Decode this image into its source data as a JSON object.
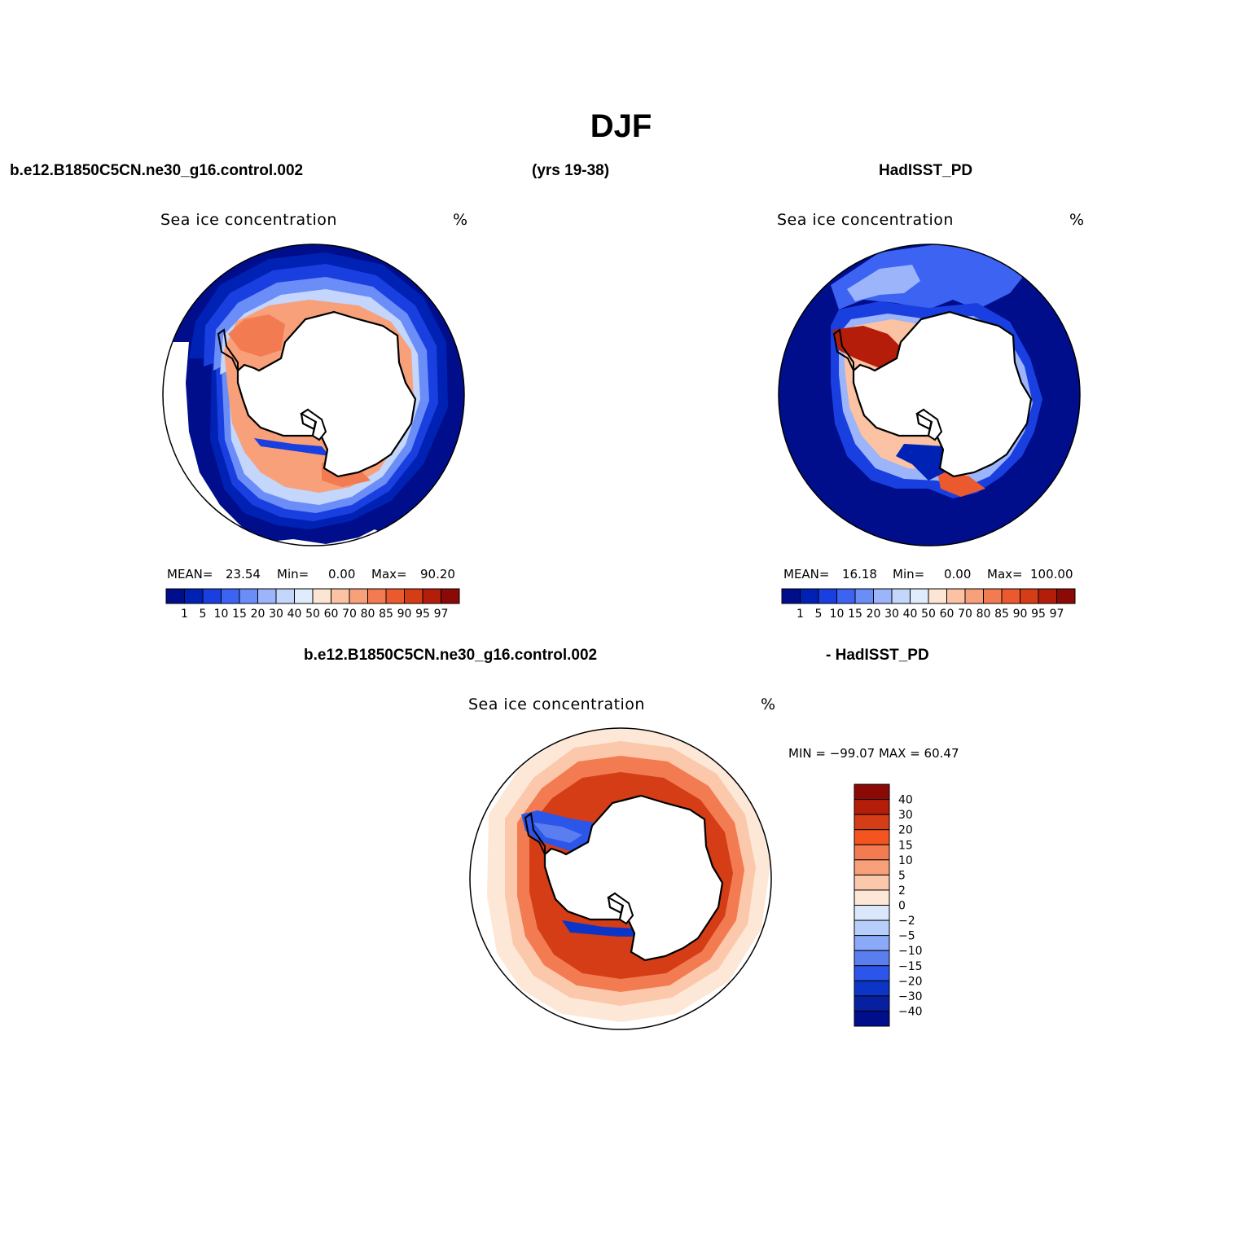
{
  "title": "DJF",
  "header": {
    "case": "b.e12.B1850C5CN.ne30_g16.control.002",
    "years": "(yrs 19-38)",
    "obs": "HadISST_PD",
    "diff_case": "b.e12.B1850C5CN.ne30_g16.control.002",
    "diff_obs": "- HadISST_PD"
  },
  "panels": [
    {
      "id": "model",
      "title": "Sea ice concentration",
      "units": "%",
      "stats": {
        "mean_label": "MEAN=",
        "mean": "23.54",
        "min_label": "Min=",
        "min": "0.00",
        "max_label": "Max=",
        "max": "90.20"
      }
    },
    {
      "id": "obs",
      "title": "Sea ice concentration",
      "units": "%",
      "stats": {
        "mean_label": "MEAN=",
        "mean": "16.18",
        "min_label": "Min=",
        "min": "0.00",
        "max_label": "Max=",
        "max": "100.00"
      }
    },
    {
      "id": "diff",
      "title": "Sea ice concentration",
      "units": "%",
      "minmax": "MIN = −99.07  MAX =   60.47"
    }
  ],
  "colorbar_abs": {
    "labels": [
      "1",
      "5",
      "10",
      "15",
      "20",
      "30",
      "40",
      "50",
      "60",
      "70",
      "80",
      "85",
      "90",
      "95",
      "97"
    ],
    "colors": [
      "#000e8c",
      "#0022b4",
      "#1a3fe0",
      "#3c63f2",
      "#6b8df7",
      "#9cb4fa",
      "#c4d6fb",
      "#e0ebfc",
      "#fde5d3",
      "#fbc2a3",
      "#f7a07a",
      "#f37b52",
      "#ea5a2e",
      "#d43d15",
      "#b31d0a",
      "#8b0a06"
    ]
  },
  "colorbar_diff": {
    "labels": [
      "40",
      "30",
      "20",
      "15",
      "10",
      "5",
      "2",
      "0",
      "−2",
      "−5",
      "−10",
      "−15",
      "−20",
      "−30",
      "−40"
    ],
    "colors": [
      "#8b0a06",
      "#b31d0a",
      "#d43d15",
      "#f45520",
      "#f37b52",
      "#f7a07a",
      "#fbc8ab",
      "#fde8d8",
      "#dbe8fb",
      "#b8cefa",
      "#8aa9f6",
      "#5a7ef0",
      "#2c56ea",
      "#0c35c8",
      "#0620a0",
      "#000e8c"
    ]
  }
}
